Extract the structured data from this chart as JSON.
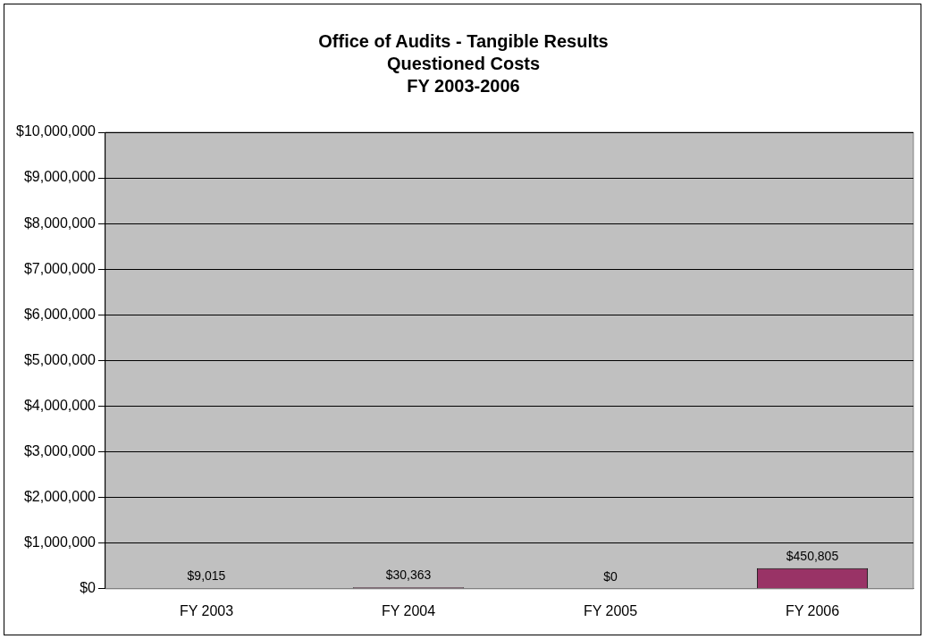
{
  "chart_data": {
    "type": "bar",
    "title": "Office of Audits - Tangible Results\nQuestioned Costs\nFY 2003-2006",
    "categories": [
      "FY 2003",
      "FY 2004",
      "FY 2005",
      "FY 2006"
    ],
    "values": [
      9015,
      30363,
      0,
      450805
    ],
    "color": "#993366",
    "value_labels": [
      "$9,015",
      "$30,363",
      "$0",
      "$450,805"
    ],
    "ylim": [
      0,
      10000000
    ],
    "yticks": [
      {
        "value": 0,
        "label": "$0"
      },
      {
        "value": 1000000,
        "label": "$1,000,000"
      },
      {
        "value": 2000000,
        "label": "$2,000,000"
      },
      {
        "value": 3000000,
        "label": "$3,000,000"
      },
      {
        "value": 4000000,
        "label": "$4,000,000"
      },
      {
        "value": 5000000,
        "label": "$5,000,000"
      },
      {
        "value": 6000000,
        "label": "$6,000,000"
      },
      {
        "value": 7000000,
        "label": "$7,000,000"
      },
      {
        "value": 8000000,
        "label": "$8,000,000"
      },
      {
        "value": 9000000,
        "label": "$9,000,000"
      },
      {
        "value": 10000000,
        "label": "$10,000,000"
      }
    ],
    "grid": "y",
    "legend": false
  }
}
